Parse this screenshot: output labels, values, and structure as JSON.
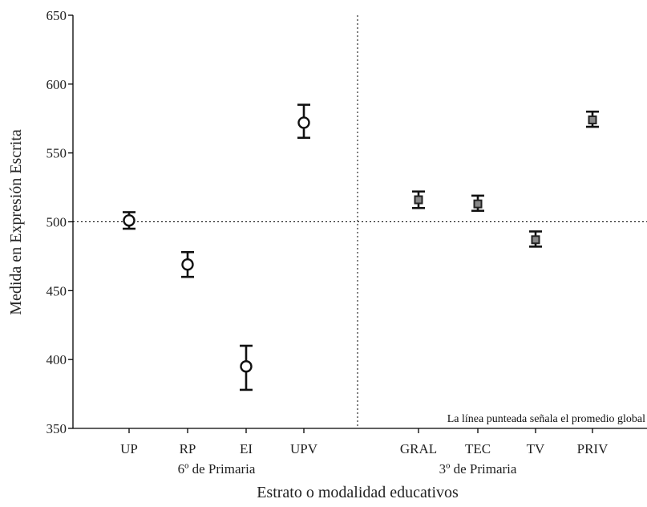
{
  "chart_data": {
    "type": "scatter",
    "ylabel": "Medida en Expresión Escrita",
    "xlabel": "Estrato o modalidad educativos",
    "ylim": [
      350,
      650
    ],
    "yticks": [
      350,
      400,
      450,
      500,
      550,
      600,
      650
    ],
    "reference_line": 500,
    "note": "La línea punteada señala el promedio global",
    "groups": [
      {
        "label": "6º de Primaria",
        "marker": "circle",
        "points": [
          {
            "category": "UP",
            "mean": 501,
            "low": 495,
            "high": 507
          },
          {
            "category": "RP",
            "mean": 469,
            "low": 460,
            "high": 478
          },
          {
            "category": "EI",
            "mean": 395,
            "low": 378,
            "high": 410
          },
          {
            "category": "UPV",
            "mean": 572,
            "low": 561,
            "high": 585
          }
        ]
      },
      {
        "label": "3º de Primaria",
        "marker": "square",
        "points": [
          {
            "category": "GRAL",
            "mean": 516,
            "low": 510,
            "high": 522
          },
          {
            "category": "TEC",
            "mean": 513,
            "low": 508,
            "high": 519
          },
          {
            "category": "TV",
            "mean": 487,
            "low": 482,
            "high": 493
          },
          {
            "category": "PRIV",
            "mean": 574,
            "low": 569,
            "high": 580
          }
        ]
      }
    ]
  }
}
